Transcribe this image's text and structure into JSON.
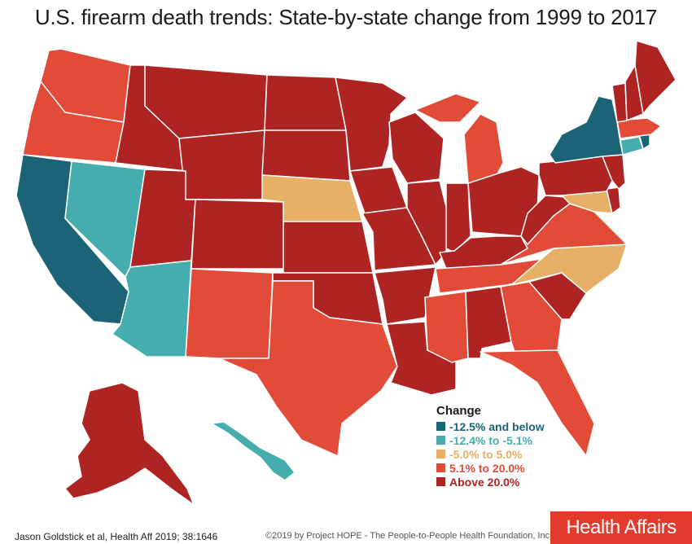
{
  "title": "U.S. firearm death trends: State-by-state change from 1999 to 2017",
  "colors": {
    "c1": "#1b6477",
    "c2": "#45adae",
    "c3": "#e6b066",
    "c4": "#e14b38",
    "c5": "#ad2422"
  },
  "legend": {
    "title": "Change",
    "items": [
      {
        "label": "-12.5% and below",
        "color": "#1b6477"
      },
      {
        "label": "-12.4% to -5.1%",
        "color": "#45adae"
      },
      {
        "label": "-5.0% to 5.0%",
        "color": "#e6b066"
      },
      {
        "label": "5.1% to 20.0%",
        "color": "#e14b38"
      },
      {
        "label": "Above 20.0%",
        "color": "#ad2422"
      }
    ]
  },
  "states": {
    "WA": "c4",
    "OR": "c4",
    "CA": "c1",
    "NV": "c2",
    "ID": "c5",
    "MT": "c5",
    "WY": "c5",
    "UT": "c5",
    "AZ": "c2",
    "CO": "c5",
    "NM": "c4",
    "ND": "c5",
    "SD": "c5",
    "NE": "c3",
    "KS": "c5",
    "OK": "c5",
    "TX": "c4",
    "MN": "c5",
    "IA": "c5",
    "MO": "c5",
    "AR": "c5",
    "LA": "c5",
    "WI": "c5",
    "IL": "c5",
    "MI": "c4",
    "IN": "c5",
    "OH": "c5",
    "KY": "c5",
    "TN": "c4",
    "MS": "c4",
    "AL": "c5",
    "GA": "c4",
    "FL": "c4",
    "SC": "c5",
    "NC": "c3",
    "VA": "c4",
    "WV": "c5",
    "MD": "c3",
    "DE": "c5",
    "PA": "c5",
    "NJ": "c5",
    "NY": "c1",
    "CT": "c2",
    "RI": "c1",
    "MA": "c4",
    "VT": "c5",
    "NH": "c5",
    "ME": "c5",
    "AK": "c5",
    "HI": "c2"
  },
  "footer": {
    "citation": "Jason Goldstick et al, Health Aff 2019; 38:1646",
    "copyright": "©2019 by Project HOPE - The People-to-People Health Foundation, Inc.",
    "brand": "Health Affairs"
  }
}
